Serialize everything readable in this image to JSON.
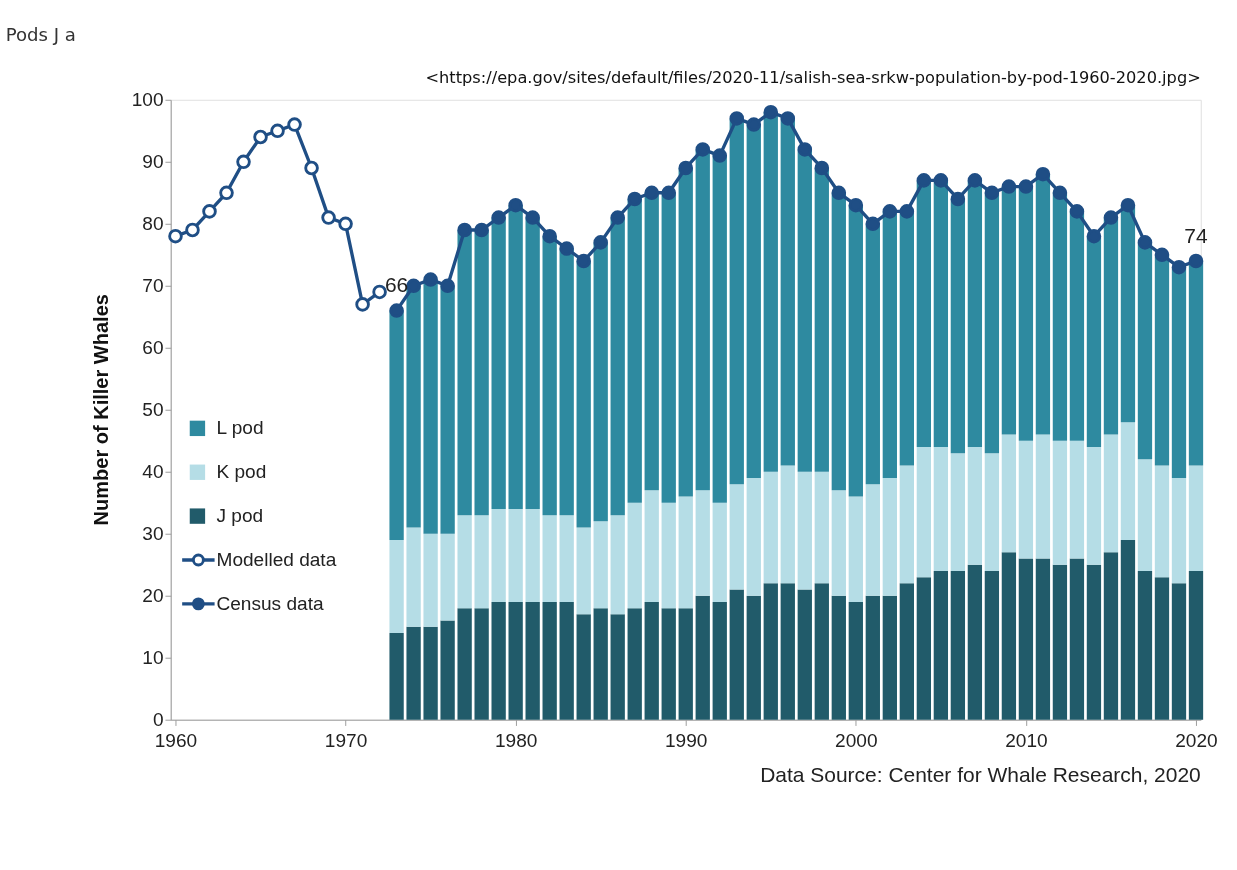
{
  "chart_data": {
    "type": "bar",
    "title": "Pods J a",
    "ylabel": "Number of Killer Whales",
    "x": [
      1973,
      1974,
      1975,
      1976,
      1977,
      1978,
      1979,
      1980,
      1981,
      1982,
      1983,
      1984,
      1985,
      1986,
      1987,
      1988,
      1989,
      1990,
      1991,
      1992,
      1993,
      1994,
      1995,
      1996,
      1997,
      1998,
      1999,
      2000,
      2001,
      2002,
      2003,
      2004,
      2005,
      2006,
      2007,
      2008,
      2009,
      2010,
      2011,
      2012,
      2013,
      2014,
      2015,
      2016,
      2017,
      2018,
      2019,
      2020
    ],
    "stacked": true,
    "series": [
      {
        "name": "J pod",
        "color": "#215b6a",
        "values": [
          14,
          15,
          15,
          16,
          18,
          18,
          19,
          19,
          19,
          19,
          19,
          17,
          18,
          17,
          18,
          19,
          18,
          18,
          20,
          19,
          21,
          20,
          22,
          22,
          21,
          22,
          20,
          19,
          20,
          20,
          22,
          23,
          24,
          24,
          25,
          24,
          27,
          26,
          26,
          25,
          26,
          25,
          27,
          29,
          24,
          23,
          22,
          24
        ]
      },
      {
        "name": "K pod",
        "color": "#b5dde6",
        "values": [
          15,
          16,
          15,
          14,
          15,
          15,
          15,
          15,
          15,
          14,
          14,
          14,
          14,
          16,
          17,
          18,
          17,
          18,
          17,
          16,
          17,
          19,
          18,
          19,
          19,
          18,
          17,
          17,
          18,
          19,
          19,
          21,
          20,
          19,
          19,
          19,
          19,
          19,
          20,
          20,
          19,
          19,
          19,
          19,
          18,
          18,
          17,
          17
        ]
      },
      {
        "name": "L pod",
        "color": "#2e8aa0",
        "values": [
          37,
          39,
          41,
          40,
          46,
          46,
          47,
          49,
          47,
          45,
          43,
          43,
          45,
          48,
          49,
          48,
          50,
          53,
          55,
          56,
          59,
          57,
          58,
          56,
          52,
          49,
          48,
          47,
          42,
          43,
          41,
          43,
          43,
          41,
          43,
          42,
          40,
          41,
          42,
          40,
          37,
          34,
          35,
          35,
          35,
          34,
          34,
          33
        ]
      },
      {
        "name": "Modelled data",
        "type": "line",
        "color": "#1f4e85",
        "marker": "circle",
        "x": [
          1960,
          1961,
          1962,
          1963,
          1964,
          1965,
          1966,
          1967,
          1968,
          1969,
          1970,
          1971,
          1972
        ],
        "values": [
          78,
          79,
          82,
          85,
          90,
          94,
          95,
          96,
          89,
          81,
          80,
          67,
          69
        ]
      },
      {
        "name": "Census data",
        "type": "line",
        "color": "#1f4e85",
        "marker": "circle",
        "values": [
          66,
          70,
          71,
          70,
          79,
          79,
          81,
          83,
          81,
          78,
          76,
          74,
          77,
          81,
          84,
          85,
          85,
          89,
          92,
          91,
          97,
          96,
          98,
          97,
          92,
          89,
          85,
          83,
          80,
          82,
          82,
          87,
          87,
          84,
          87,
          85,
          86,
          86,
          88,
          85,
          82,
          78,
          81,
          83,
          77,
          75,
          73,
          74
        ]
      }
    ],
    "xlim": [
      1960,
      2020
    ],
    "xticks": [
      1960,
      1970,
      1980,
      1990,
      2000,
      2010,
      2020
    ],
    "ylim": [
      0,
      100
    ],
    "yticks": [
      0,
      10,
      20,
      30,
      40,
      50,
      60,
      70,
      80,
      90,
      100
    ],
    "grid": false,
    "legend": "left",
    "annotations": [
      "<https://epa.gov/sites/default/files/2020-11/salish-sea-srkw-population-by-pod-1960-2020.jpg>",
      "Data Source: Center for Whale Research, 2020",
      {
        "text": "66",
        "x": 1973,
        "y": 66
      },
      {
        "text": "74",
        "x": 2020,
        "y": 74
      }
    ]
  }
}
